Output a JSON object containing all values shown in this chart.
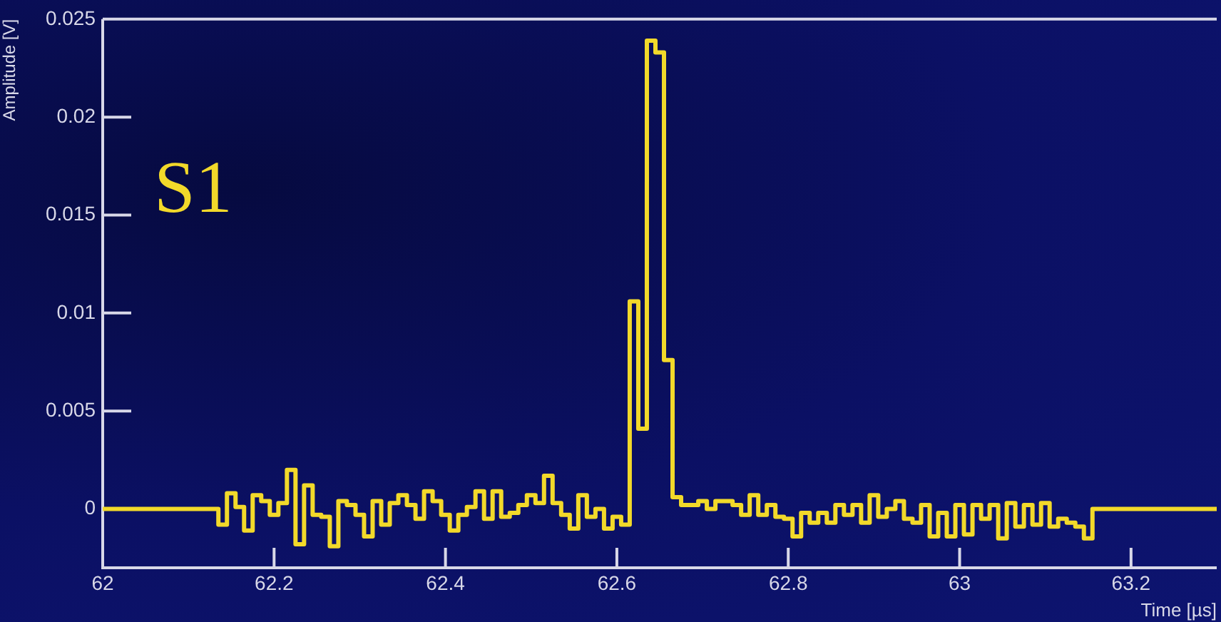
{
  "chart_data": {
    "type": "step",
    "xlabel": "Time [µs]",
    "ylabel": "Amplitude [V]",
    "annotations": [
      "S1"
    ],
    "xlim": [
      62,
      63.3
    ],
    "ylim": [
      -0.003,
      0.025
    ],
    "grid": false,
    "legend": false,
    "xticks": [
      62,
      62.2,
      62.4,
      62.6,
      62.8,
      63,
      63.2
    ],
    "yticks": [
      0,
      0.005,
      0.01,
      0.015,
      0.02,
      0.025
    ],
    "series": [
      {
        "color": "#f2d92a",
        "x": [
          62,
          62.135,
          62.145,
          62.155,
          62.165,
          62.175,
          62.185,
          62.195,
          62.205,
          62.215,
          62.225,
          62.235,
          62.245,
          62.255,
          62.265,
          62.275,
          62.285,
          62.295,
          62.305,
          62.315,
          62.325,
          62.335,
          62.345,
          62.355,
          62.365,
          62.375,
          62.385,
          62.395,
          62.405,
          62.415,
          62.425,
          62.435,
          62.445,
          62.455,
          62.465,
          62.475,
          62.485,
          62.495,
          62.505,
          62.515,
          62.525,
          62.535,
          62.545,
          62.555,
          62.565,
          62.575,
          62.585,
          62.595,
          62.605,
          62.615,
          62.625,
          62.635,
          62.645,
          62.655,
          62.665,
          62.675,
          62.685,
          62.695,
          62.705,
          62.715,
          62.725,
          62.735,
          62.745,
          62.755,
          62.765,
          62.775,
          62.785,
          62.795,
          62.805,
          62.815,
          62.825,
          62.835,
          62.845,
          62.855,
          62.865,
          62.875,
          62.885,
          62.895,
          62.905,
          62.915,
          62.925,
          62.935,
          62.945,
          62.955,
          62.965,
          62.975,
          62.985,
          62.995,
          63.005,
          63.015,
          63.025,
          63.035,
          63.045,
          63.055,
          63.065,
          63.075,
          63.085,
          63.095,
          63.105,
          63.115,
          63.125,
          63.135,
          63.145,
          63.155,
          63.3
        ],
        "values": [
          0,
          -0.0008,
          0.0008,
          0.0001,
          -0.0011,
          0.0007,
          0.0004,
          -0.0003,
          0.0003,
          0.002,
          -0.0018,
          0.0012,
          -0.0003,
          -0.0004,
          -0.0019,
          0.0004,
          0.0002,
          -0.0003,
          -0.0014,
          0.0004,
          -0.0008,
          0.0003,
          0.0007,
          0.0002,
          -0.0005,
          0.0009,
          0.0004,
          -0.0003,
          -0.0011,
          -0.0003,
          0.0001,
          0.0009,
          -0.0005,
          0.0009,
          -0.0004,
          -0.0002,
          0.0002,
          0.0007,
          0.0003,
          0.0017,
          0.0003,
          -0.0003,
          -0.001,
          0.0007,
          -0.0004,
          0,
          -0.001,
          -0.0004,
          -0.0008,
          0.0106,
          0.0041,
          0.0239,
          0.0233,
          0.0076,
          0.0006,
          0.0002,
          0.0002,
          0.0004,
          0,
          0.0004,
          0.0004,
          0.0002,
          -0.0003,
          0.0007,
          -0.0003,
          0.0002,
          -0.0004,
          -0.0005,
          -0.0014,
          -0.0002,
          -0.0007,
          -0.0002,
          -0.0007,
          0.0002,
          -0.0003,
          0.0002,
          -0.0007,
          0.0007,
          -0.0004,
          0,
          0.0004,
          -0.0005,
          -0.0007,
          0.0002,
          -0.0014,
          -0.0002,
          -0.0014,
          0.0002,
          -0.0013,
          0.0002,
          -0.0005,
          0.0002,
          -0.0015,
          0.0003,
          -0.0009,
          0.0002,
          -0.0008,
          0.0003,
          -0.0009,
          -0.0005,
          -0.0007,
          -0.0009,
          -0.0015,
          0,
          0
        ]
      }
    ]
  }
}
